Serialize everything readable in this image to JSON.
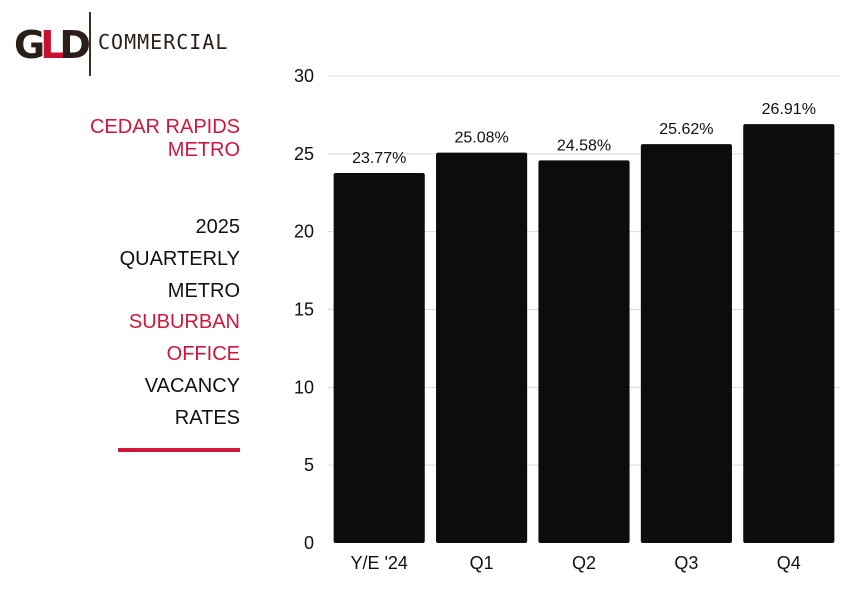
{
  "logo": {
    "mark_g": "G",
    "mark_l": "L",
    "mark_d": "D",
    "text": "COMMERCIAL"
  },
  "market": "CEDAR RAPIDS METRO",
  "title_lines": [
    {
      "text": "2025",
      "accent": false
    },
    {
      "text": "QUARTERLY",
      "accent": false
    },
    {
      "text": "METRO",
      "accent": false
    },
    {
      "text": "SUBURBAN",
      "accent": true
    },
    {
      "text": "OFFICE",
      "accent": true
    },
    {
      "text": "VACANCY",
      "accent": false
    },
    {
      "text": "RATES",
      "accent": false
    }
  ],
  "colors": {
    "accent": "#d0163b",
    "bar": "#0d0b0c",
    "grid": "#d9d9d9"
  },
  "chart_data": {
    "type": "bar",
    "categories": [
      "Y/E '24",
      "Q1",
      "Q2",
      "Q3",
      "Q4"
    ],
    "values": [
      23.77,
      25.08,
      24.58,
      25.62,
      26.91
    ],
    "data_labels": [
      "23.77%",
      "25.08%",
      "24.58%",
      "25.62%",
      "26.91%"
    ],
    "yticks": [
      0,
      5,
      10,
      15,
      20,
      25,
      30
    ],
    "ylim": [
      0,
      30
    ],
    "grid": true,
    "title": "",
    "xlabel": "",
    "ylabel": ""
  }
}
